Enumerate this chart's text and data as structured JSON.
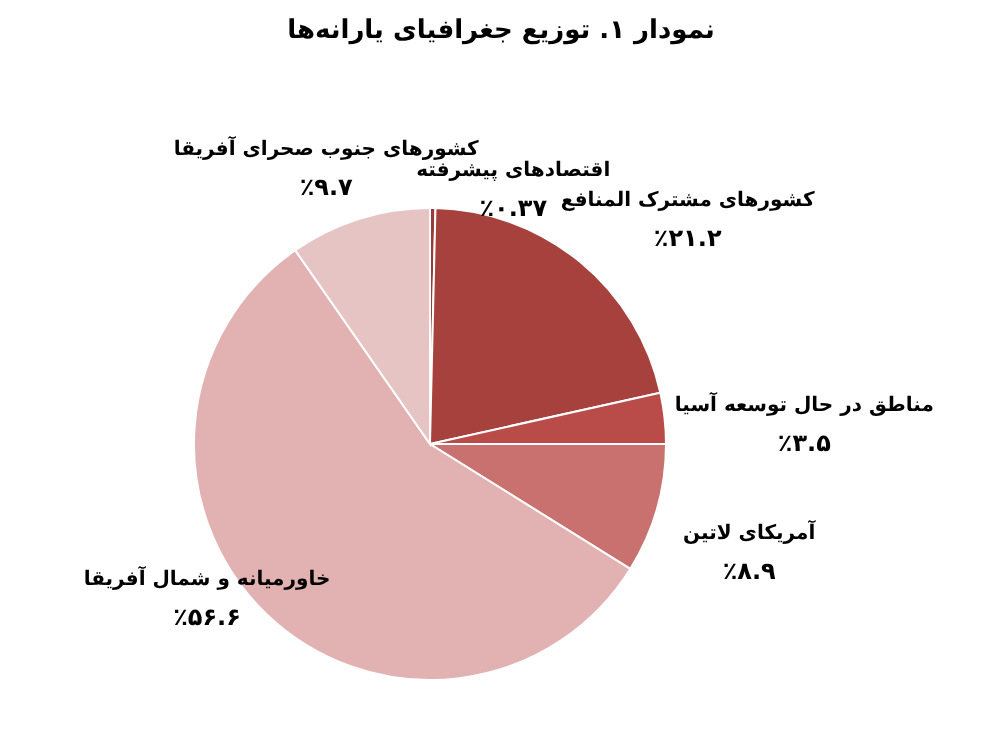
{
  "chart_data": {
    "type": "pie",
    "title": "نمودار ۱. توزیع جغرافیای یارانه‌ها",
    "categories": [
      "اقتصادهای پیشرفته",
      "کشورهای مشترک المنافع",
      "مناطق در حال توسعه آسیا",
      "آمریکای لاتین",
      "خاورمیانه و شمال آفریقا",
      "کشورهای جنوب صحرای آفریقا"
    ],
    "values": [
      0.37,
      21.2,
      3.5,
      8.9,
      56.6,
      9.7
    ],
    "value_labels": [
      "٪۰.۳۷",
      "٪۲۱.۲",
      "٪۳.۵",
      "٪۸.۹",
      "٪۵۶.۶",
      "٪۹.۷"
    ],
    "colors": [
      "#9e3a36",
      "#a7413d",
      "#b94c49",
      "#c9716e",
      "#e2b1b1",
      "#e6c4c4"
    ]
  }
}
